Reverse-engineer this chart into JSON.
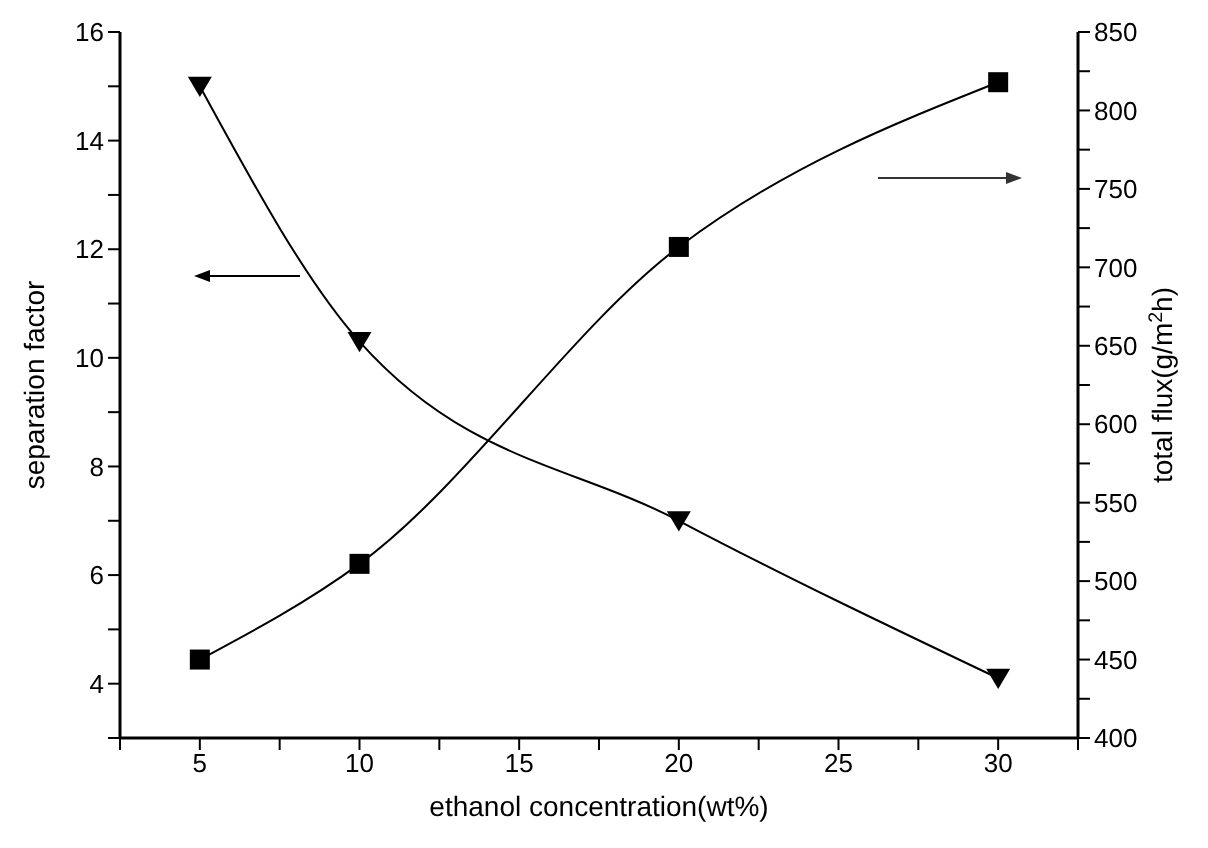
{
  "chart_data": {
    "type": "line",
    "xlabel": "ethanol concentration(wt%)",
    "ylabel": "separation factor",
    "y2label": "total flux(g/m$^{2}$h)",
    "x": [
      5,
      10,
      20,
      30
    ],
    "series": [
      {
        "color": "#000000",
        "marker": "triangle",
        "values": [
          15.0,
          10.3,
          7.0,
          4.1
        ]
      },
      {
        "color": "#000000",
        "marker": "square",
        "axis": "y2",
        "values": [
          450,
          511,
          713,
          818
        ]
      }
    ],
    "xlim": [
      2.5,
      32.5
    ],
    "xticks": [
      {
        "value": 2.5,
        "label": null
      },
      5,
      {
        "value": 7.5,
        "label": null
      },
      10,
      {
        "value": 12.5,
        "label": null
      },
      15,
      {
        "value": 17.5,
        "label": null
      },
      20,
      {
        "value": 22.5,
        "label": null
      },
      25,
      {
        "value": 27.5,
        "label": null
      },
      30,
      {
        "value": 32.5,
        "label": null
      }
    ],
    "ylim": [
      3,
      16
    ],
    "yticks": [
      {
        "value": 3,
        "label": null
      },
      4,
      {
        "value": 5,
        "label": null
      },
      6,
      {
        "value": 7,
        "label": null
      },
      8,
      {
        "value": 9,
        "label": null
      },
      10,
      {
        "value": 11,
        "label": null
      },
      12,
      {
        "value": 13,
        "label": null
      },
      14,
      {
        "value": 15,
        "label": null
      },
      16
    ],
    "y2lim": [
      400,
      850
    ],
    "y2ticks": [
      400,
      {
        "value": 425,
        "label": null
      },
      450,
      {
        "value": 475,
        "label": null
      },
      500,
      {
        "value": 525,
        "label": null
      },
      550,
      {
        "value": 575,
        "label": null
      },
      600,
      {
        "value": 625,
        "label": null
      },
      650,
      {
        "value": 675,
        "label": null
      },
      700,
      {
        "value": 725,
        "label": null
      },
      750,
      {
        "value": 775,
        "label": null
      },
      800,
      {
        "value": 825,
        "label": null
      },
      850
    ],
    "line_style": "solid"
  }
}
